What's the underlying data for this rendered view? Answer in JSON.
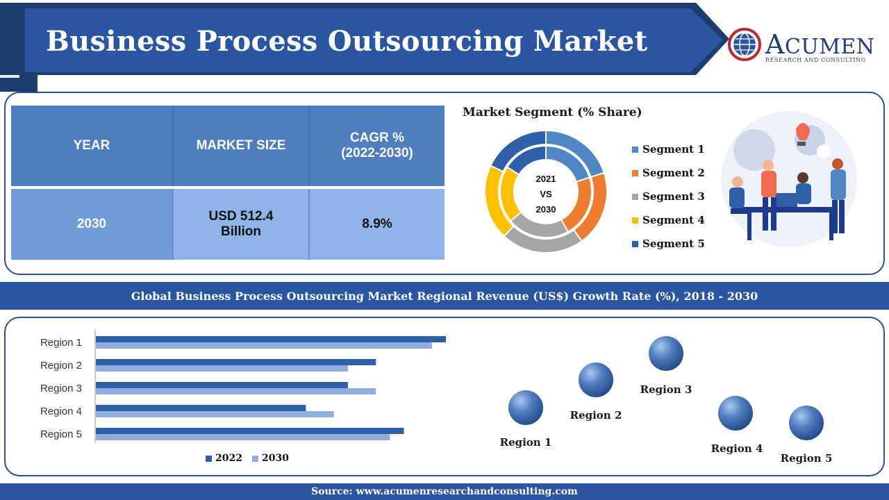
{
  "header": {
    "title": "Business Process Outsourcing Market"
  },
  "logo": {
    "name_first": "A",
    "name_rest": "CUMEN",
    "subtitle": "RESEARCH AND CONSULTING"
  },
  "market_table": {
    "headers": [
      "YEAR",
      "MARKET SIZE",
      "CAGR %",
      "(2022-2030)"
    ],
    "row": {
      "year": "2030",
      "size_line1": "USD 512.4",
      "size_line2": "Billion",
      "cagr": "8.9%"
    }
  },
  "segment": {
    "title": "Market Segment (% Share)",
    "center_line1": "2021",
    "center_line2": "VS",
    "center_line3": "2030",
    "legend": [
      "Segment 1",
      "Segment 2",
      "Segment 3",
      "Segment 4",
      "Segment 5"
    ],
    "colors": [
      "#4f86c6",
      "#ed7d31",
      "#a5a5a5",
      "#ffc000",
      "#2e5fa8"
    ]
  },
  "section_title": "Global Business Process Outsourcing Market Regional Revenue (US$) Growth Rate (%), 2018 - 2030",
  "regions_spheres": [
    "Region 1",
    "Region 2",
    "Region 3",
    "Region 4",
    "Region 5"
  ],
  "footer": {
    "source": "Source: www.acumenresearchandconsulting.com"
  },
  "chart_data": [
    {
      "type": "pie",
      "categories": [
        "Segment 1",
        "Segment 2",
        "Segment 3",
        "Segment 4",
        "Segment 5"
      ],
      "series": [
        {
          "values": [
            20,
            20,
            22,
            20,
            18
          ]
        },
        {
          "values": [
            20,
            22,
            22,
            20,
            16
          ]
        }
      ],
      "colors": [
        "#4f86c6",
        "#ed7d31",
        "#a5a5a5",
        "#ffc000",
        "#2e5fa8"
      ]
    },
    {
      "type": "bar",
      "orientation": "horizontal",
      "categories": [
        "Region 1",
        "Region 2",
        "Region 3",
        "Region 4",
        "Region 5"
      ],
      "series": [
        {
          "name": "2022",
          "values": [
            100,
            80,
            72,
            60,
            88
          ],
          "color": "#2e5fa8"
        },
        {
          "name": "2030",
          "values": [
            96,
            72,
            80,
            68,
            84
          ],
          "color": "#8faee0"
        }
      ],
      "legend": "bottom"
    }
  ]
}
